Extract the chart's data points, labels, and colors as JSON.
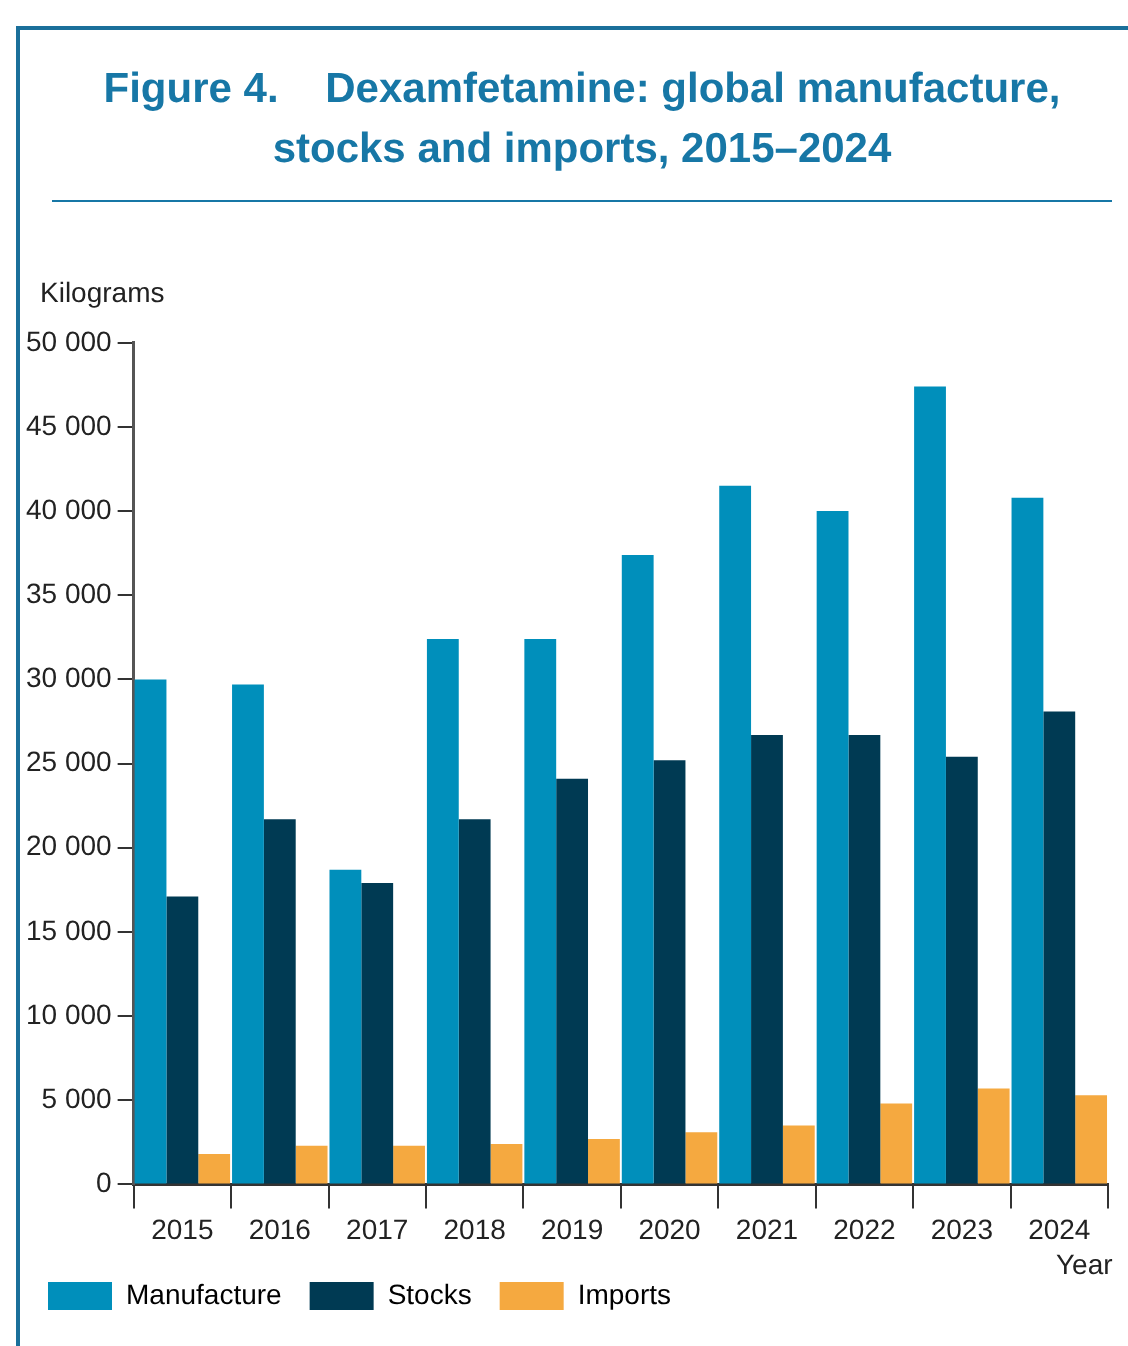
{
  "chart_data": {
    "type": "bar",
    "title": "Figure 4.    Dexamfetamine: global manufacture, stocks and imports, 2015–2024",
    "ylabel": "Kilograms",
    "xlabel": "Year",
    "categories": [
      "2015",
      "2016",
      "2017",
      "2018",
      "2019",
      "2020",
      "2021",
      "2022",
      "2023",
      "2024"
    ],
    "series": [
      {
        "name": "Manufacture",
        "color": "#008fbb",
        "values": [
          30000,
          29700,
          18700,
          32400,
          32400,
          37400,
          41500,
          40000,
          47400,
          40800
        ]
      },
      {
        "name": "Stocks",
        "color": "#003a53",
        "values": [
          17100,
          21700,
          17900,
          21700,
          24100,
          25200,
          26700,
          26700,
          25400,
          28100
        ]
      },
      {
        "name": "Imports",
        "color": "#f5a940",
        "values": [
          1800,
          2300,
          2300,
          2400,
          2700,
          3100,
          3500,
          4800,
          5700,
          5300
        ]
      }
    ],
    "ylim": [
      0,
      50000
    ],
    "yticks": [
      0,
      {
        "value": 5000,
        "label": "5 000"
      },
      {
        "value": 10000,
        "label": "10 000"
      },
      {
        "value": 15000,
        "label": "15 000"
      },
      {
        "value": 20000,
        "label": "20 000"
      },
      {
        "value": 25000,
        "label": "25 000"
      },
      {
        "value": 30000,
        "label": "30 000"
      },
      {
        "value": 35000,
        "label": "35 000"
      },
      {
        "value": 40000,
        "label": "40 000"
      },
      {
        "value": 45000,
        "label": "45 000"
      },
      {
        "value": 50000,
        "label": "50 000"
      }
    ],
    "grid": false,
    "legend": "bottom left"
  }
}
